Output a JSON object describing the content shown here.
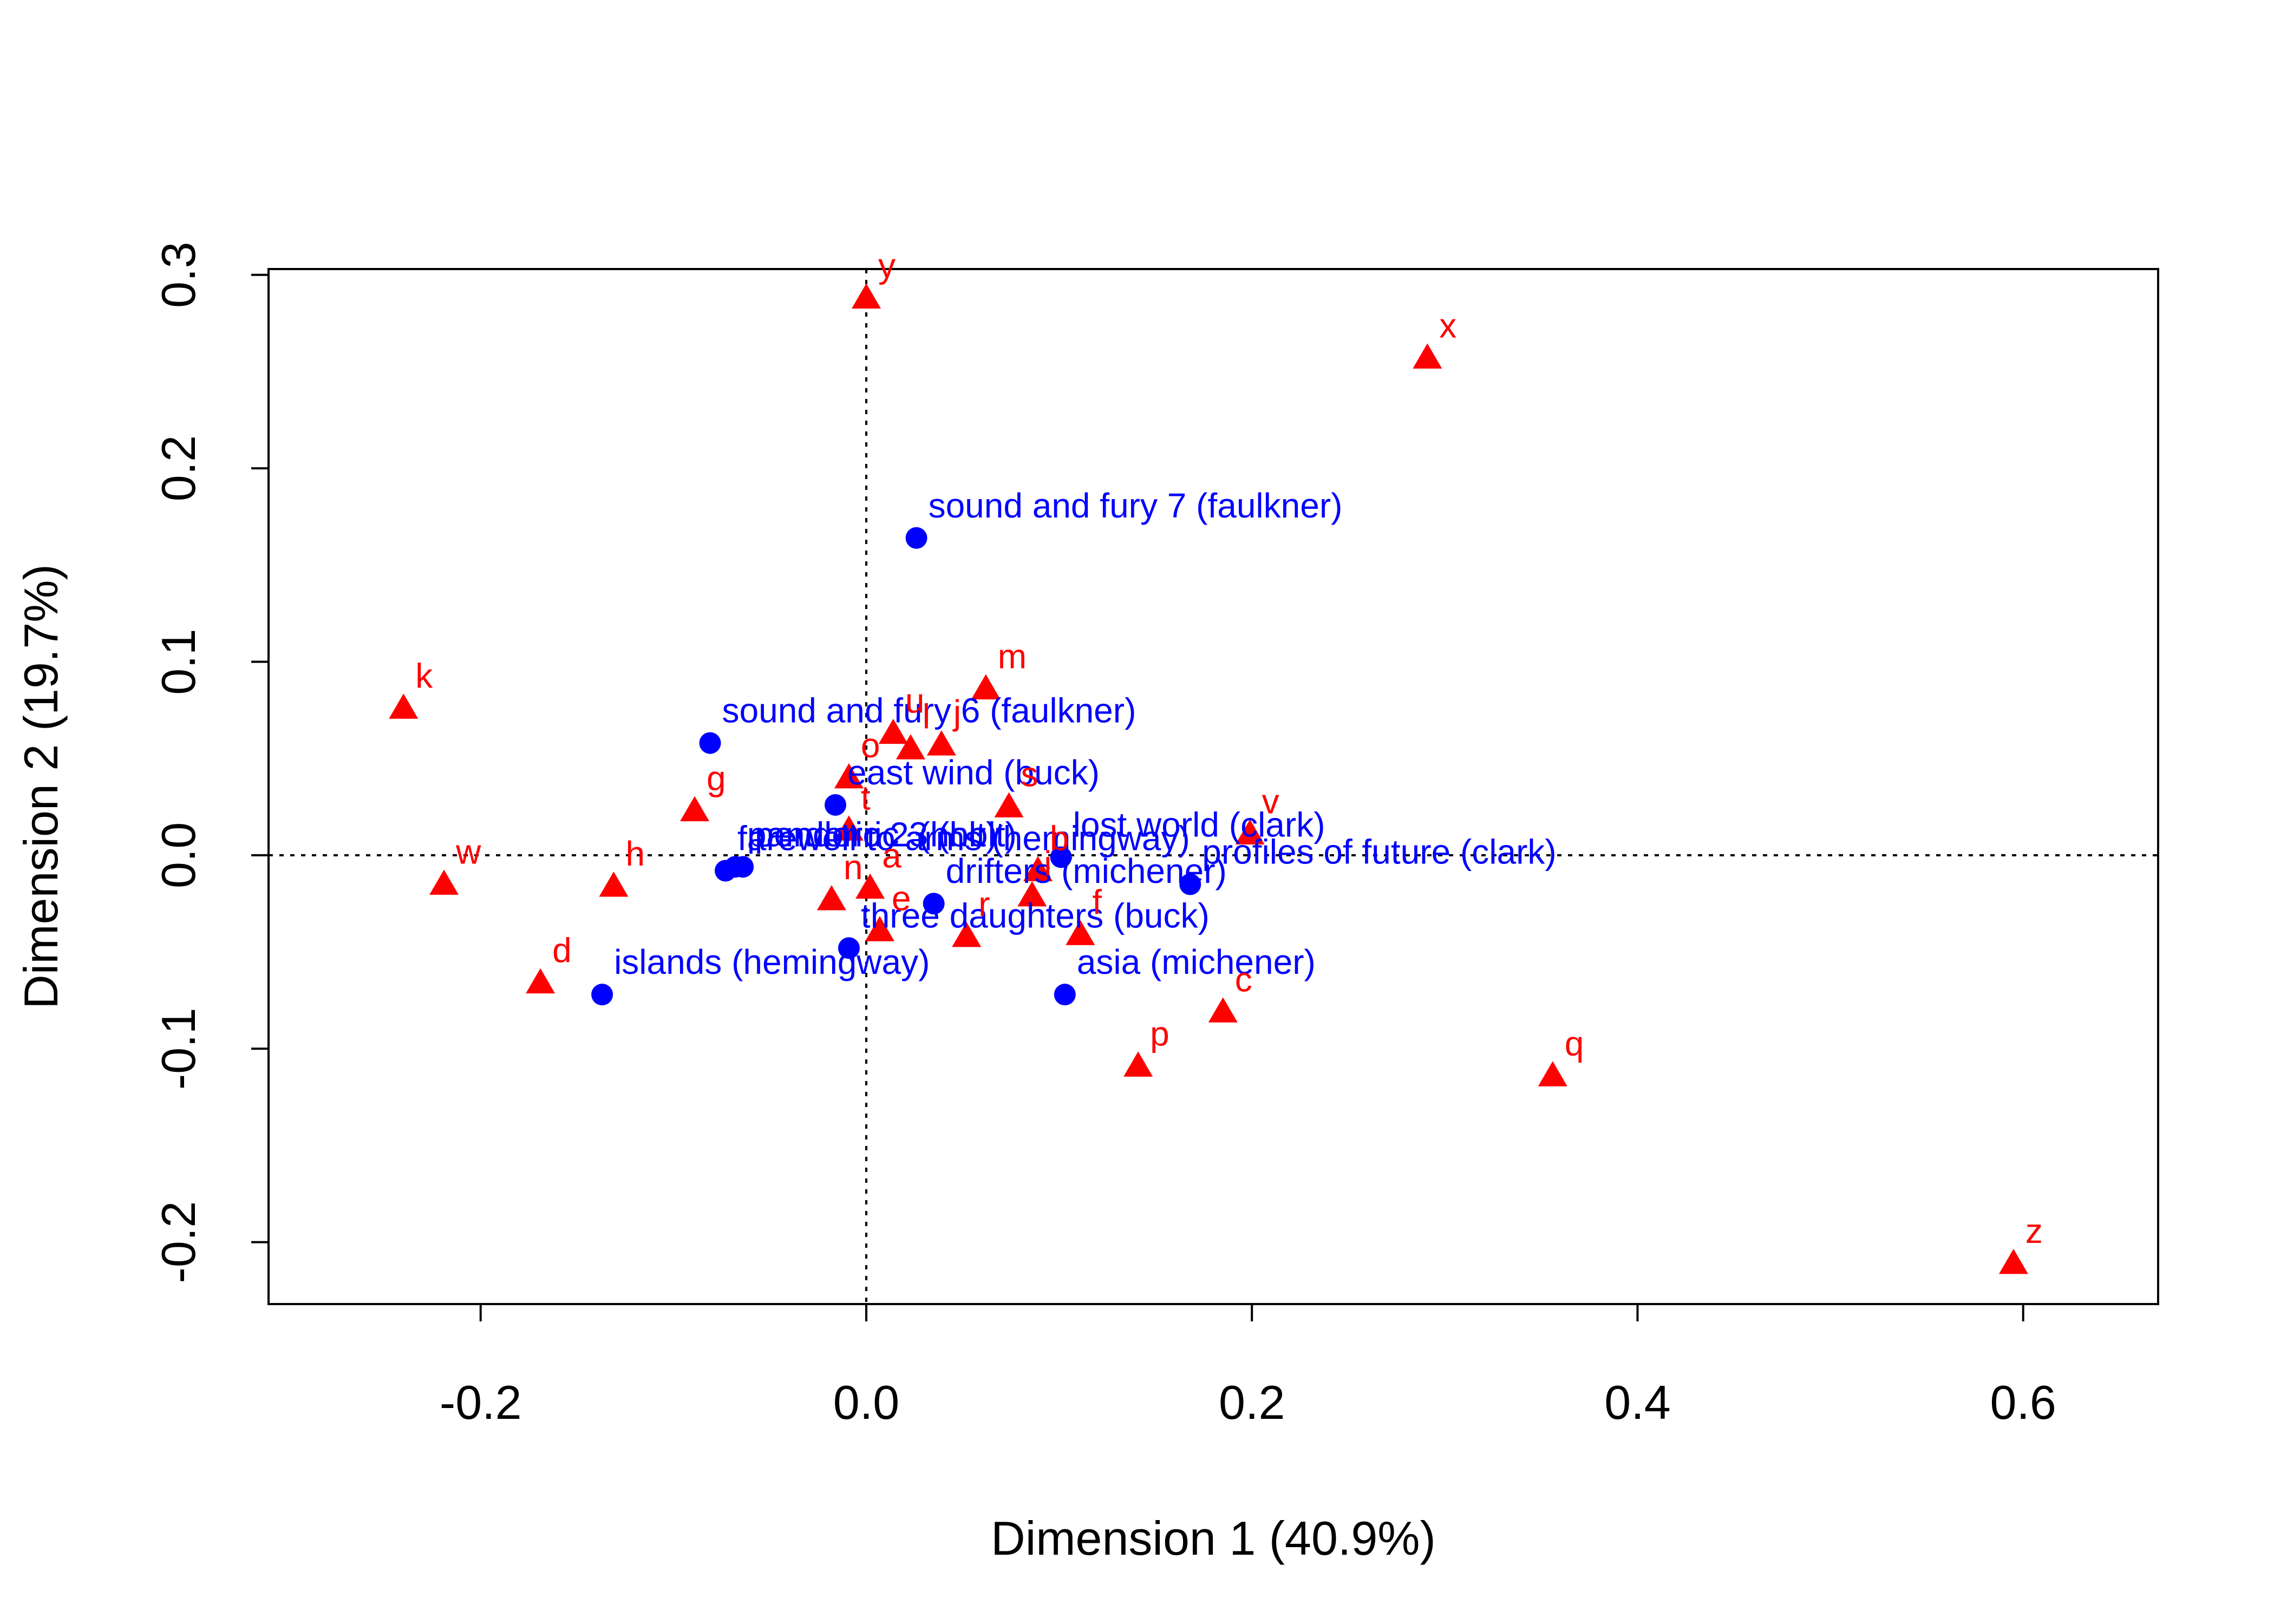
{
  "chart_data": {
    "type": "scatter",
    "title": "",
    "xlabel": "Dimension 1 (40.9%)",
    "ylabel": "Dimension 2 (19.7%)",
    "xlim": [
      -0.31,
      0.67
    ],
    "ylim": [
      -0.232,
      0.303
    ],
    "x_ticks": [
      -0.2,
      0.0,
      0.2,
      0.4,
      0.6
    ],
    "x_tick_labels": [
      "-0.2",
      "0.0",
      "0.2",
      "0.4",
      "0.6"
    ],
    "y_ticks": [
      -0.2,
      -0.1,
      0.0,
      0.1,
      0.2,
      0.3
    ],
    "y_tick_labels": [
      "-0.2",
      "-0.1",
      "0.0",
      "0.1",
      "0.2",
      "0.3"
    ],
    "reference_lines": {
      "x": 0,
      "y": 0,
      "style": "dotted"
    },
    "colors": {
      "rows": "#0000ff",
      "columns": "#ff0000"
    },
    "series": [
      {
        "name": "",
        "marker": "circle",
        "color": "#0000ff",
        "points": [
          {
            "label": "sound and fury 7 (faulkner)",
            "x": 0.026,
            "y": 0.164
          },
          {
            "label": "sound and fury 6 (faulkner)",
            "x": -0.081,
            "y": 0.058
          },
          {
            "label": "east wind (buck)",
            "x": -0.016,
            "y": 0.026
          },
          {
            "label": "lost world (clark)",
            "x": 0.101,
            "y": -0.001
          },
          {
            "label": "profiles of future (clark)",
            "x": 0.168,
            "y": -0.015
          },
          {
            "label": "pendorric 3 (holt)",
            "x": -0.064,
            "y": -0.006
          },
          {
            "label": "pandoric 2 (holt)",
            "x": -0.068,
            "y": -0.006
          },
          {
            "label": "farewell to arms (hemingway)",
            "x": -0.073,
            "y": -0.008
          },
          {
            "label": "drifters (michener)",
            "x": 0.035,
            "y": -0.025
          },
          {
            "label": "three daughters (buck)",
            "x": -0.009,
            "y": -0.048
          },
          {
            "label": "islands (hemingway)",
            "x": -0.137,
            "y": -0.072
          },
          {
            "label": "asia (michener)",
            "x": 0.103,
            "y": -0.072
          }
        ]
      },
      {
        "name": "",
        "marker": "triangle",
        "color": "#ff0000",
        "points": [
          {
            "label": "y",
            "x": 0.0,
            "y": 0.288
          },
          {
            "label": "x",
            "x": 0.291,
            "y": 0.257
          },
          {
            "label": "k",
            "x": -0.24,
            "y": 0.076
          },
          {
            "label": "m",
            "x": 0.062,
            "y": 0.086
          },
          {
            "label": "u",
            "x": 0.014,
            "y": 0.063
          },
          {
            "label": "l",
            "x": 0.023,
            "y": 0.055
          },
          {
            "label": "j",
            "x": 0.039,
            "y": 0.057
          },
          {
            "label": "o",
            "x": -0.009,
            "y": 0.04
          },
          {
            "label": "s",
            "x": 0.074,
            "y": 0.025
          },
          {
            "label": "g",
            "x": -0.089,
            "y": 0.023
          },
          {
            "label": "t",
            "x": -0.009,
            "y": 0.013
          },
          {
            "label": "v",
            "x": 0.199,
            "y": 0.011
          },
          {
            "label": "w",
            "x": -0.219,
            "y": -0.015
          },
          {
            "label": "h",
            "x": -0.131,
            "y": -0.016
          },
          {
            "label": "b",
            "x": 0.089,
            "y": -0.008
          },
          {
            "label": "a",
            "x": 0.002,
            "y": -0.017
          },
          {
            "label": "n",
            "x": -0.018,
            "y": -0.023
          },
          {
            "label": "i",
            "x": 0.086,
            "y": -0.021
          },
          {
            "label": "e",
            "x": 0.007,
            "y": -0.039
          },
          {
            "label": "r",
            "x": 0.052,
            "y": -0.042
          },
          {
            "label": "f",
            "x": 0.111,
            "y": -0.041
          },
          {
            "label": "d",
            "x": -0.169,
            "y": -0.066
          },
          {
            "label": "c",
            "x": 0.185,
            "y": -0.081
          },
          {
            "label": "p",
            "x": 0.141,
            "y": -0.109
          },
          {
            "label": "q",
            "x": 0.356,
            "y": -0.114
          },
          {
            "label": "z",
            "x": 0.595,
            "y": -0.211
          }
        ]
      }
    ]
  }
}
